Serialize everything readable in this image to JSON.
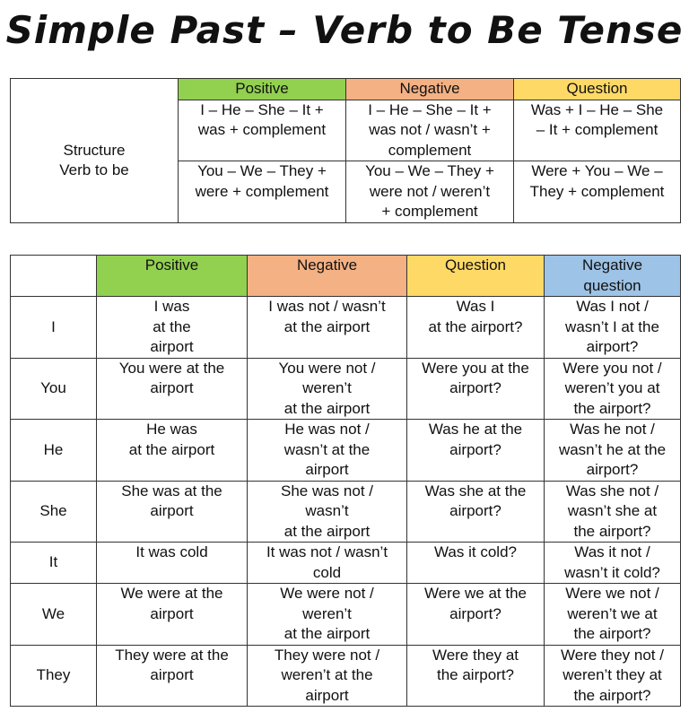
{
  "title": "Simple Past – Verb to Be Tense",
  "colors": {
    "positive": "#92d050",
    "negative": "#f4b183",
    "question": "#ffd966",
    "negative_question": "#9dc3e6"
  },
  "structure_table": {
    "label": "Structure\nVerb to be",
    "headers": [
      "Positive",
      "Negative",
      "Question"
    ],
    "rows": [
      [
        "I – He – She – It  +\nwas + complement",
        "I – He – She – It  +\nwas not / wasn’t +\ncomplement",
        "Was + I – He – She\n– It  + complement"
      ],
      [
        "You – We – They +\nwere + complement",
        "You – We – They +\nwere not / weren’t\n+ complement",
        "Were + You – We –\nThey + complement"
      ]
    ]
  },
  "examples_table": {
    "headers": [
      "",
      "Positive",
      "Negative",
      "Question",
      "Negative\nquestion"
    ],
    "rows": [
      {
        "pronoun": "I",
        "cells": [
          "I was\nat the\nairport",
          "I was not / wasn’t\nat the airport",
          "Was I\nat the airport?",
          "Was I not /\nwasn’t I at the\nairport?"
        ]
      },
      {
        "pronoun": "You",
        "cells": [
          "You were at the\nairport",
          "You were not /\nweren’t\nat the airport",
          "Were you at the\nairport?",
          "Were you not /\nweren’t you at\nthe airport?"
        ]
      },
      {
        "pronoun": "He",
        "cells": [
          "He was\nat the airport",
          "He was not /\nwasn’t at the\nairport",
          "Was he at the\nairport?",
          "Was he not /\nwasn’t he at the\nairport?"
        ]
      },
      {
        "pronoun": "She",
        "cells": [
          "She was at the\nairport",
          "She was not /\nwasn’t\nat the airport",
          "Was she at the\nairport?",
          "Was she not /\nwasn’t she at\nthe airport?"
        ]
      },
      {
        "pronoun": "It",
        "cells": [
          "It was cold",
          "It was not / wasn’t\ncold",
          "Was it cold?",
          "Was it not /\nwasn’t it cold?"
        ]
      },
      {
        "pronoun": "We",
        "cells": [
          "We were at the\nairport",
          "We were not /\nweren’t\nat the airport",
          "Were we at the\nairport?",
          "Were we not /\nweren’t we at\nthe airport?"
        ]
      },
      {
        "pronoun": "They",
        "cells": [
          "They were at the\nairport",
          "They were not /\nweren’t at the\nairport",
          "Were they at\nthe airport?",
          "Were they not /\nweren’t they at\nthe airport?"
        ]
      }
    ]
  }
}
